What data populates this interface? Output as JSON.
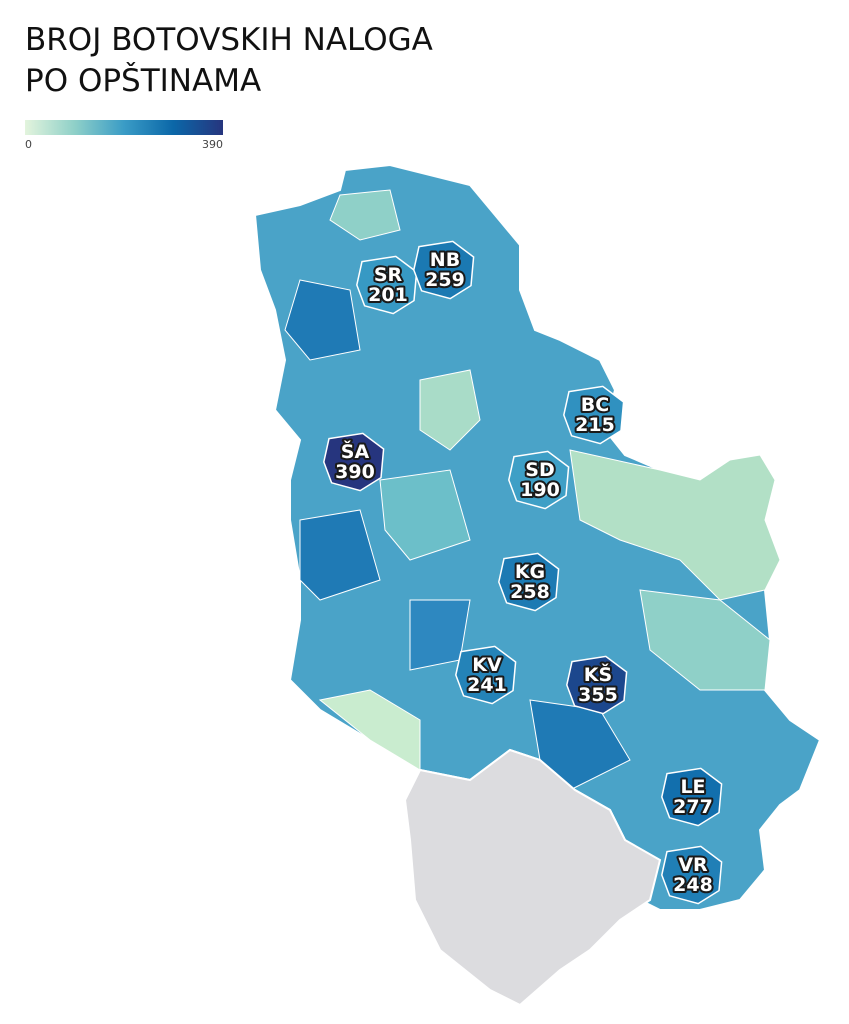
{
  "title": [
    "BROJ BOTOVSKIH NALOGA",
    "PO OPŠTINAMA"
  ],
  "legend": {
    "min": 0,
    "max": 390,
    "colors": [
      "#e3f4dd",
      "#8fd0c8",
      "#3a9cc6",
      "#0b67a8",
      "#26357e"
    ]
  },
  "municipalities": [
    {
      "code": "SR",
      "value": 201
    },
    {
      "code": "NB",
      "value": 259
    },
    {
      "code": "BC",
      "value": 215
    },
    {
      "code": "ŠA",
      "value": 390
    },
    {
      "code": "SD",
      "value": 190
    },
    {
      "code": "KG",
      "value": 258
    },
    {
      "code": "KV",
      "value": 241
    },
    {
      "code": "KŠ",
      "value": 355
    },
    {
      "code": "LE",
      "value": 277
    },
    {
      "code": "VR",
      "value": 248
    }
  ]
}
